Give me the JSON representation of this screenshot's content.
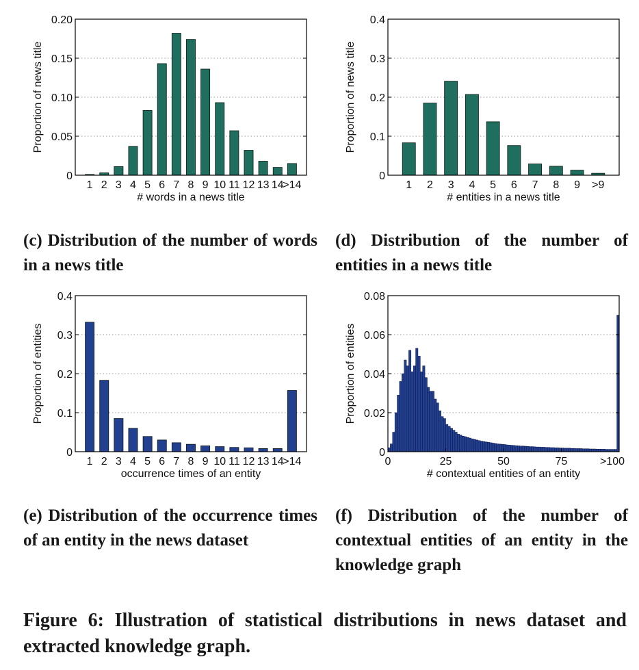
{
  "captions": {
    "c": "(c) Distribution of the number of words in a news title",
    "d": "(d) Distribution of the number of entities in a news title",
    "e": "(e) Distribution of the occurrence times of an entity in the news dataset",
    "f": "(f) Distribution of the number of contextual entities of an entity in the knowledge graph",
    "figure": "Figure 6: Illustration of statistical distributions in news dataset and extracted knowledge graph."
  },
  "chart_data": [
    {
      "id": "c",
      "type": "bar",
      "color": "#1f6e5e",
      "xlabel": "# words in a news title",
      "ylabel": "Proportion of news title",
      "ylim": [
        0,
        0.2
      ],
      "yticks": [
        "0",
        "0.05",
        "0.10",
        "0.15",
        "0.20"
      ],
      "ytick_values": [
        0,
        0.05,
        0.1,
        0.15,
        0.2
      ],
      "categories": [
        "1",
        "2",
        "3",
        "4",
        "5",
        "6",
        "7",
        "8",
        "9",
        "10",
        "11",
        "12",
        "13",
        "14",
        ">14"
      ],
      "values": [
        0.001,
        0.003,
        0.011,
        0.037,
        0.083,
        0.143,
        0.182,
        0.174,
        0.136,
        0.093,
        0.057,
        0.032,
        0.018,
        0.01,
        0.015
      ],
      "grid": true
    },
    {
      "id": "d",
      "type": "bar",
      "color": "#1f6e5e",
      "xlabel": "# entities in a news title",
      "ylabel": "Proportion of news title",
      "ylim": [
        0,
        0.4
      ],
      "yticks": [
        "0",
        "0.1",
        "0.2",
        "0.3",
        "0.4"
      ],
      "ytick_values": [
        0,
        0.1,
        0.2,
        0.3,
        0.4
      ],
      "categories": [
        "1",
        "2",
        "3",
        "4",
        "5",
        "6",
        "7",
        "8",
        "9",
        ">9"
      ],
      "values": [
        0.083,
        0.185,
        0.241,
        0.207,
        0.137,
        0.076,
        0.029,
        0.023,
        0.013,
        0.005
      ],
      "grid": true
    },
    {
      "id": "e",
      "type": "bar",
      "color": "#233f8f",
      "xlabel": "occurrence times of an entity",
      "ylabel": "Proportion of entities",
      "ylim": [
        0,
        0.4
      ],
      "yticks": [
        "0",
        "0.1",
        "0.2",
        "0.3",
        "0.4"
      ],
      "ytick_values": [
        0,
        0.1,
        0.2,
        0.3,
        0.4
      ],
      "categories": [
        "1",
        "2",
        "3",
        "4",
        "5",
        "6",
        "7",
        "8",
        "9",
        "10",
        "11",
        "12",
        "13",
        "14",
        ">14"
      ],
      "values": [
        0.332,
        0.183,
        0.085,
        0.06,
        0.039,
        0.03,
        0.023,
        0.019,
        0.015,
        0.013,
        0.011,
        0.01,
        0.008,
        0.008,
        0.157
      ],
      "grid": true
    },
    {
      "id": "f",
      "type": "bar",
      "color": "#233f8f",
      "xlabel": "# contextual entities of an entity",
      "ylabel": "Proportion of entities",
      "ylim": [
        0,
        0.08
      ],
      "xlim": [
        0,
        100
      ],
      "yticks": [
        "0",
        "0.02",
        "0.04",
        "0.06",
        "0.08"
      ],
      "ytick_values": [
        0,
        0.02,
        0.04,
        0.06,
        0.08
      ],
      "xticks": [
        "0",
        "25",
        "50",
        "75",
        ">100"
      ],
      "xtick_values": [
        0,
        25,
        50,
        75,
        100
      ],
      "x": [
        1,
        2,
        3,
        4,
        5,
        6,
        7,
        8,
        9,
        10,
        11,
        12,
        13,
        14,
        15,
        16,
        17,
        18,
        19,
        20,
        21,
        22,
        23,
        24,
        25,
        26,
        27,
        28,
        29,
        30,
        31,
        32,
        33,
        34,
        35,
        36,
        37,
        38,
        39,
        40,
        41,
        42,
        43,
        44,
        45,
        46,
        47,
        48,
        49,
        50,
        51,
        52,
        53,
        54,
        55,
        56,
        57,
        58,
        59,
        60,
        61,
        62,
        63,
        64,
        65,
        66,
        67,
        68,
        69,
        70,
        71,
        72,
        73,
        74,
        75,
        76,
        77,
        78,
        79,
        80,
        81,
        82,
        83,
        84,
        85,
        86,
        87,
        88,
        89,
        90,
        91,
        92,
        93,
        94,
        95,
        96,
        97,
        98,
        99,
        100
      ],
      "values": [
        0.002,
        0.004,
        0.01,
        0.02,
        0.029,
        0.036,
        0.04,
        0.047,
        0.044,
        0.052,
        0.041,
        0.044,
        0.053,
        0.049,
        0.041,
        0.044,
        0.038,
        0.033,
        0.031,
        0.031,
        0.027,
        0.025,
        0.021,
        0.018,
        0.017,
        0.014,
        0.013,
        0.012,
        0.011,
        0.01,
        0.009,
        0.0085,
        0.008,
        0.0077,
        0.0073,
        0.007,
        0.0066,
        0.0063,
        0.006,
        0.0057,
        0.0054,
        0.0052,
        0.005,
        0.0048,
        0.0046,
        0.0044,
        0.0042,
        0.004,
        0.0039,
        0.0038,
        0.0037,
        0.0035,
        0.0034,
        0.0033,
        0.0032,
        0.0031,
        0.003,
        0.0029,
        0.0029,
        0.0028,
        0.0027,
        0.0026,
        0.0026,
        0.0025,
        0.0024,
        0.0024,
        0.0023,
        0.0023,
        0.0022,
        0.0022,
        0.0021,
        0.0021,
        0.002,
        0.002,
        0.0019,
        0.0019,
        0.0018,
        0.0018,
        0.0018,
        0.0017,
        0.0017,
        0.0016,
        0.0016,
        0.0016,
        0.0015,
        0.0015,
        0.0015,
        0.0014,
        0.0014,
        0.0014,
        0.0013,
        0.0013,
        0.0013,
        0.0013,
        0.0012,
        0.0012,
        0.0012,
        0.0012,
        0.0012,
        0.07
      ],
      "grid": true
    }
  ]
}
